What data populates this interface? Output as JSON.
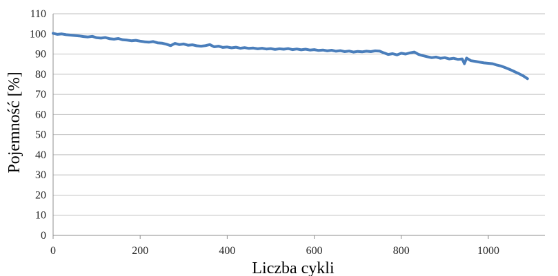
{
  "chart_data": {
    "type": "line",
    "title": "",
    "xlabel": "Liczba cykli",
    "ylabel": "Pojemność [%]",
    "xlim": [
      0,
      1130
    ],
    "ylim": [
      0,
      110
    ],
    "x_ticks": [
      0,
      200,
      400,
      600,
      800,
      1000
    ],
    "y_ticks": [
      0,
      10,
      20,
      30,
      40,
      50,
      60,
      70,
      80,
      90,
      100,
      110
    ],
    "grid": "horizontal",
    "legend": "none",
    "colors": {
      "line": "#4a7ebb",
      "grid": "#bfbfbf",
      "axis": "#8c8c8c"
    },
    "series": [
      {
        "x": [
          0,
          10,
          20,
          30,
          40,
          50,
          60,
          70,
          80,
          90,
          100,
          110,
          120,
          130,
          140,
          150,
          160,
          170,
          180,
          190,
          200,
          210,
          220,
          230,
          240,
          250,
          260,
          270,
          280,
          290,
          300,
          310,
          320,
          330,
          340,
          350,
          360,
          370,
          380,
          390,
          400,
          410,
          420,
          430,
          440,
          450,
          460,
          470,
          480,
          490,
          500,
          510,
          520,
          530,
          540,
          550,
          560,
          570,
          580,
          590,
          600,
          610,
          620,
          630,
          640,
          650,
          660,
          670,
          680,
          690,
          700,
          710,
          720,
          730,
          740,
          750,
          760,
          770,
          780,
          790,
          800,
          810,
          820,
          830,
          840,
          850,
          860,
          870,
          880,
          890,
          900,
          910,
          920,
          930,
          940,
          945,
          950,
          960,
          970,
          980,
          990,
          1000,
          1010,
          1020,
          1030,
          1040,
          1050,
          1060,
          1070,
          1080,
          1090
        ],
        "values": [
          100.3,
          99.8,
          100.0,
          99.6,
          99.4,
          99.2,
          99.0,
          98.7,
          98.5,
          98.8,
          98.1,
          97.9,
          98.2,
          97.6,
          97.4,
          97.7,
          97.1,
          96.9,
          96.6,
          96.8,
          96.4,
          96.1,
          95.9,
          96.2,
          95.6,
          95.4,
          94.9,
          94.2,
          95.3,
          94.7,
          95.0,
          94.4,
          94.6,
          94.1,
          93.9,
          94.2,
          94.7,
          93.6,
          93.9,
          93.3,
          93.5,
          93.1,
          93.4,
          92.9,
          93.2,
          92.8,
          93.0,
          92.6,
          92.9,
          92.5,
          92.7,
          92.3,
          92.6,
          92.4,
          92.7,
          92.2,
          92.5,
          92.1,
          92.4,
          92.0,
          92.2,
          91.8,
          92.0,
          91.6,
          91.9,
          91.4,
          91.7,
          91.2,
          91.5,
          91.0,
          91.3,
          91.1,
          91.4,
          91.2,
          91.6,
          91.5,
          90.6,
          89.8,
          90.2,
          89.6,
          90.4,
          90.0,
          90.6,
          91.0,
          89.8,
          89.2,
          88.7,
          88.2,
          88.5,
          87.9,
          88.2,
          87.6,
          87.9,
          87.4,
          87.6,
          85.2,
          88.0,
          86.7,
          86.4,
          86.0,
          85.6,
          85.4,
          85.2,
          84.5,
          84.0,
          83.2,
          82.3,
          81.3,
          80.3,
          79.2,
          77.8
        ]
      }
    ]
  }
}
